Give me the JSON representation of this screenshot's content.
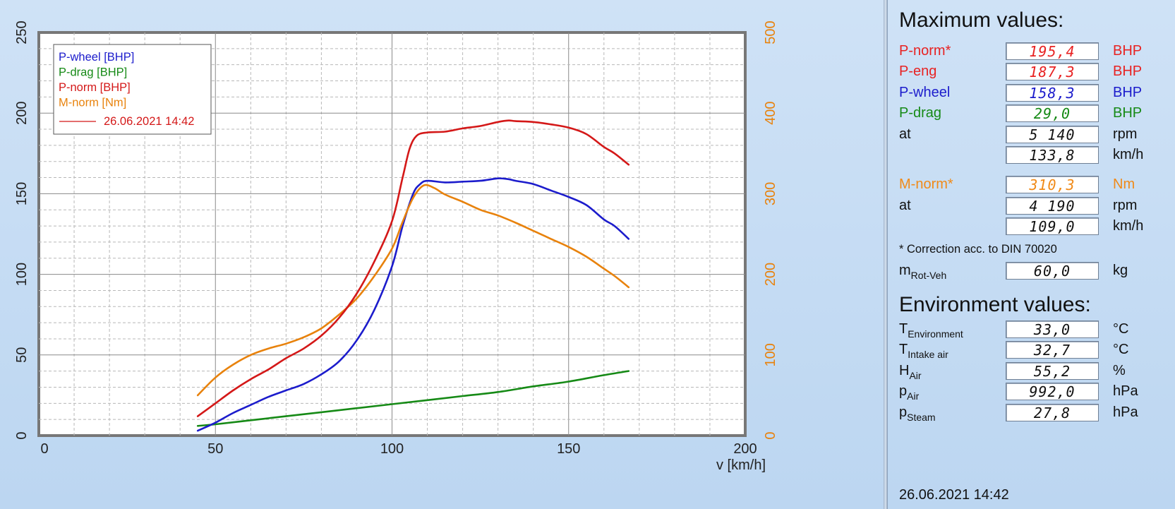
{
  "chart_data": {
    "type": "line",
    "xlabel": "v [km/h]",
    "xlim": [
      0,
      200
    ],
    "ylim_left": [
      0,
      250
    ],
    "ylim_right": [
      0,
      500
    ],
    "x_ticks": [
      "0",
      "50",
      "100",
      "150",
      "200"
    ],
    "y_ticks_left": [
      "0",
      "50",
      "100",
      "150",
      "200",
      "250"
    ],
    "y_ticks_right": [
      "0",
      "100",
      "200",
      "300",
      "400",
      "500"
    ],
    "grid": true,
    "legend_position": "top-left",
    "legend_stamp": "26.06.2021 14:42",
    "series": [
      {
        "name": "P-wheel [BHP]",
        "color": "#1c1ccc",
        "axis": "left",
        "x": [
          45,
          50,
          55,
          60,
          65,
          70,
          75,
          80,
          85,
          90,
          95,
          100,
          103,
          106,
          108,
          110,
          115,
          120,
          125,
          130,
          133,
          135,
          140,
          145,
          150,
          155,
          160,
          163,
          167
        ],
        "y": [
          3,
          8,
          14,
          19,
          24,
          28,
          32,
          38,
          46,
          59,
          78,
          105,
          130,
          150,
          156,
          158,
          157,
          157.5,
          158,
          159.5,
          159,
          158,
          156,
          152,
          148,
          143,
          134,
          130,
          122
        ]
      },
      {
        "name": "P-drag [BHP]",
        "color": "#168a16",
        "axis": "left",
        "x": [
          45,
          50,
          60,
          70,
          80,
          90,
          100,
          110,
          120,
          130,
          140,
          150,
          160,
          167
        ],
        "y": [
          6,
          7,
          9.5,
          12,
          14.5,
          17,
          19.5,
          22,
          24.5,
          27,
          30.5,
          33.5,
          37.5,
          40
        ]
      },
      {
        "name": "P-norm [BHP]",
        "color": "#d41818",
        "axis": "left",
        "x": [
          45,
          50,
          55,
          60,
          65,
          70,
          75,
          80,
          85,
          90,
          95,
          100,
          103,
          105,
          107,
          110,
          115,
          120,
          125,
          130,
          133,
          135,
          140,
          145,
          150,
          155,
          160,
          163,
          167
        ],
        "y": [
          12,
          20,
          28,
          35,
          41,
          48,
          54,
          62,
          73,
          88,
          108,
          133,
          160,
          178,
          186,
          188,
          188.5,
          190.5,
          192,
          194.5,
          195.4,
          195,
          194.5,
          193,
          191,
          187,
          179,
          175,
          168
        ]
      },
      {
        "name": "M-norm [Nm]",
        "color": "#e8820c",
        "axis": "right",
        "x": [
          45,
          50,
          55,
          60,
          65,
          70,
          75,
          80,
          85,
          90,
          95,
          100,
          103,
          106,
          109,
          112,
          115,
          120,
          125,
          130,
          135,
          140,
          145,
          150,
          155,
          160,
          163,
          167
        ],
        "y": [
          50,
          72,
          88,
          100,
          108,
          114,
          122,
          133,
          150,
          170,
          198,
          232,
          265,
          295,
          310.3,
          307,
          299,
          290,
          280,
          273,
          264,
          254,
          244,
          234,
          222,
          207,
          198,
          184
        ]
      }
    ]
  },
  "panel": {
    "max_title": "Maximum values:",
    "max_rows": [
      {
        "label": "P-norm*",
        "value": "195,4",
        "unit": "BHP",
        "color": "#e82222"
      },
      {
        "label": "P-eng",
        "value": "187,3",
        "unit": "BHP",
        "color": "#e82222"
      },
      {
        "label": "P-wheel",
        "value": "158,3",
        "unit": "BHP",
        "color": "#1c1ccc"
      },
      {
        "label": "P-drag",
        "value": "29,0",
        "unit": "BHP",
        "color": "#168a16"
      },
      {
        "label": "at",
        "value": "5 140",
        "unit": "rpm",
        "color": "#111111"
      },
      {
        "label": "",
        "value": "133,8",
        "unit": "km/h",
        "color": "#111111"
      },
      {
        "label": "M-norm*",
        "value": "310,3",
        "unit": "Nm",
        "color": "#f08a18"
      },
      {
        "label": "at",
        "value": "4 190",
        "unit": "rpm",
        "color": "#111111"
      },
      {
        "label": "",
        "value": "109,0",
        "unit": "km/h",
        "color": "#111111"
      }
    ],
    "correction_note": "* Correction acc. to DIN 70020",
    "mrot": {
      "label": "m",
      "sub": "Rot-Veh",
      "value": "60,0",
      "unit": "kg"
    },
    "env_title": "Environment values:",
    "env_rows": [
      {
        "label": "T",
        "sub": "Environment",
        "value": "33,0",
        "unit": "°C"
      },
      {
        "label": "T",
        "sub": "Intake air",
        "value": "32,7",
        "unit": "°C"
      },
      {
        "label": "H",
        "sub": "Air",
        "value": "55,2",
        "unit": "%"
      },
      {
        "label": "p",
        "sub": "Air",
        "value": "992,0",
        "unit": "hPa"
      },
      {
        "label": "p",
        "sub": "Steam",
        "value": "27,8",
        "unit": "hPa"
      }
    ],
    "timestamp": "26.06.2021  14:42"
  }
}
